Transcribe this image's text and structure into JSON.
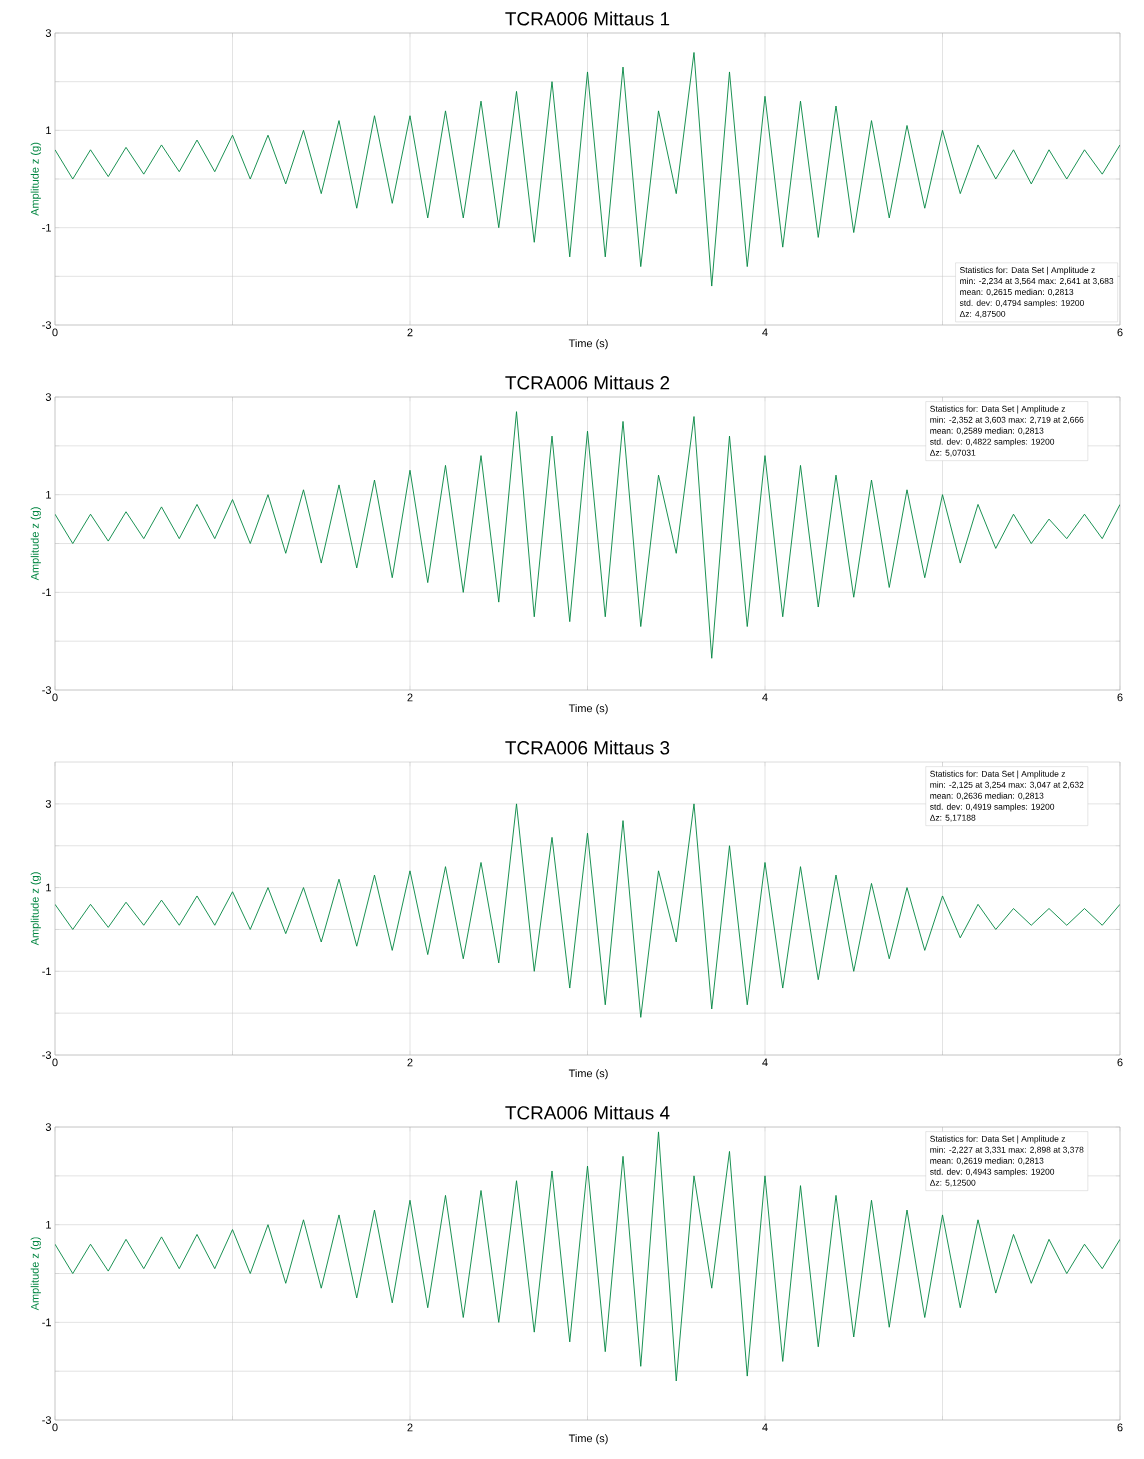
{
  "chart_data": [
    {
      "type": "line",
      "title": "TCRA006 Mittaus 1",
      "xlabel": "Time (s)",
      "ylabel": "Amplitude z (g)",
      "color": "#008540",
      "grid": true,
      "xlim": [
        0,
        6
      ],
      "ylim": [
        -3,
        3
      ],
      "xticks": [
        0,
        {
          "value": 1,
          "label": null
        },
        2,
        {
          "value": 3,
          "label": null
        },
        4,
        {
          "value": 5,
          "label": null
        },
        6
      ],
      "yticks": [
        -3,
        {
          "value": -2,
          "label": null
        },
        -1,
        {
          "value": 0,
          "label": null
        },
        1,
        {
          "value": 2,
          "label": null
        },
        3
      ],
      "annotations": [
        "Statistics for: Data Set | Amplitude z",
        "min: -2,234 at 3,564 max: 2,641 at 3,683",
        "mean: 0,2615 median: 0,2813",
        "std. dev: 0,4794 samples: 19200",
        "Δz: 4,87500"
      ],
      "x": [
        0.0,
        0.1,
        0.2,
        0.3,
        0.4,
        0.5,
        0.6,
        0.7,
        0.8,
        0.9,
        1.0,
        1.1,
        1.2,
        1.3,
        1.4,
        1.5,
        1.6,
        1.7,
        1.8,
        1.9,
        2.0,
        2.1,
        2.2,
        2.3,
        2.4,
        2.5,
        2.6,
        2.7,
        2.8,
        2.9,
        3.0,
        3.1,
        3.2,
        3.3,
        3.4,
        3.5,
        3.6,
        3.7,
        3.8,
        3.9,
        4.0,
        4.1,
        4.2,
        4.3,
        4.4,
        4.5,
        4.6,
        4.7,
        4.8,
        4.9,
        5.0,
        5.1,
        5.2,
        5.3,
        5.4,
        5.5,
        5.6,
        5.7,
        5.8,
        5.9,
        6.0
      ],
      "values": [
        0.6,
        0.0,
        0.6,
        0.05,
        0.65,
        0.1,
        0.7,
        0.15,
        0.8,
        0.15,
        0.9,
        0.0,
        0.9,
        -0.1,
        1.0,
        -0.3,
        1.2,
        -0.6,
        1.3,
        -0.5,
        1.3,
        -0.8,
        1.4,
        -0.8,
        1.6,
        -1.0,
        1.8,
        -1.3,
        2.0,
        -1.6,
        2.2,
        -1.6,
        2.3,
        -1.8,
        1.4,
        -0.3,
        2.6,
        -2.2,
        2.2,
        -1.8,
        1.7,
        -1.4,
        1.6,
        -1.2,
        1.5,
        -1.1,
        1.2,
        -0.8,
        1.1,
        -0.6,
        1.0,
        -0.3,
        0.7,
        0.0,
        0.6,
        -0.1,
        0.6,
        0.0,
        0.6,
        0.1,
        0.7
      ]
    },
    {
      "type": "line",
      "title": "TCRA006 Mittaus 2",
      "xlabel": "Time (s)",
      "ylabel": "Amplitude z (g)",
      "color": "#008540",
      "grid": true,
      "xlim": [
        0,
        6
      ],
      "ylim": [
        -3,
        3
      ],
      "xticks": [
        0,
        {
          "value": 1,
          "label": null
        },
        2,
        {
          "value": 3,
          "label": null
        },
        4,
        {
          "value": 5,
          "label": null
        },
        6
      ],
      "yticks": [
        -3,
        {
          "value": -2,
          "label": null
        },
        -1,
        {
          "value": 0,
          "label": null
        },
        1,
        {
          "value": 2,
          "label": null
        },
        3
      ],
      "annotations": [
        "Statistics for: Data Set | Amplitude z",
        "min: -2,352 at 3,603 max: 2,719 at 2,666",
        "mean: 0,2589 median: 0,2813",
        "std. dev: 0,4822 samples: 19200",
        "Δz: 5,07031"
      ],
      "x": [
        0.0,
        0.1,
        0.2,
        0.3,
        0.4,
        0.5,
        0.6,
        0.7,
        0.8,
        0.9,
        1.0,
        1.1,
        1.2,
        1.3,
        1.4,
        1.5,
        1.6,
        1.7,
        1.8,
        1.9,
        2.0,
        2.1,
        2.2,
        2.3,
        2.4,
        2.5,
        2.6,
        2.7,
        2.8,
        2.9,
        3.0,
        3.1,
        3.2,
        3.3,
        3.4,
        3.5,
        3.6,
        3.7,
        3.8,
        3.9,
        4.0,
        4.1,
        4.2,
        4.3,
        4.4,
        4.5,
        4.6,
        4.7,
        4.8,
        4.9,
        5.0,
        5.1,
        5.2,
        5.3,
        5.4,
        5.5,
        5.6,
        5.7,
        5.8,
        5.9,
        6.0
      ],
      "values": [
        0.6,
        0.0,
        0.6,
        0.05,
        0.65,
        0.1,
        0.75,
        0.1,
        0.8,
        0.1,
        0.9,
        0.0,
        1.0,
        -0.2,
        1.1,
        -0.4,
        1.2,
        -0.5,
        1.3,
        -0.7,
        1.5,
        -0.8,
        1.6,
        -1.0,
        1.8,
        -1.2,
        2.7,
        -1.5,
        2.2,
        -1.6,
        2.3,
        -1.5,
        2.5,
        -1.7,
        1.4,
        -0.2,
        2.6,
        -2.35,
        2.2,
        -1.7,
        1.8,
        -1.5,
        1.6,
        -1.3,
        1.4,
        -1.1,
        1.3,
        -0.9,
        1.1,
        -0.7,
        1.0,
        -0.4,
        0.8,
        -0.1,
        0.6,
        0.0,
        0.5,
        0.1,
        0.6,
        0.1,
        0.8
      ]
    },
    {
      "type": "line",
      "title": "TCRA006 Mittaus 3",
      "xlabel": "Time (s)",
      "ylabel": "Amplitude z (g)",
      "color": "#008540",
      "grid": true,
      "xlim": [
        0,
        6
      ],
      "ylim": [
        -3,
        4
      ],
      "xticks": [
        0,
        {
          "value": 1,
          "label": null
        },
        2,
        {
          "value": 3,
          "label": null
        },
        4,
        {
          "value": 5,
          "label": null
        },
        6
      ],
      "yticks": [
        -3,
        {
          "value": -2,
          "label": null
        },
        -1,
        {
          "value": 0,
          "label": null
        },
        1,
        {
          "value": 2,
          "label": null
        },
        3
      ],
      "annotations": [
        "Statistics for: Data Set | Amplitude z",
        "min: -2,125 at 3,254 max: 3,047 at 2,632",
        "mean: 0,2636 median: 0,2813",
        "std. dev: 0,4919 samples: 19200",
        "Δz: 5,17188"
      ],
      "x": [
        0.0,
        0.1,
        0.2,
        0.3,
        0.4,
        0.5,
        0.6,
        0.7,
        0.8,
        0.9,
        1.0,
        1.1,
        1.2,
        1.3,
        1.4,
        1.5,
        1.6,
        1.7,
        1.8,
        1.9,
        2.0,
        2.1,
        2.2,
        2.3,
        2.4,
        2.5,
        2.6,
        2.7,
        2.8,
        2.9,
        3.0,
        3.1,
        3.2,
        3.3,
        3.4,
        3.5,
        3.6,
        3.7,
        3.8,
        3.9,
        4.0,
        4.1,
        4.2,
        4.3,
        4.4,
        4.5,
        4.6,
        4.7,
        4.8,
        4.9,
        5.0,
        5.1,
        5.2,
        5.3,
        5.4,
        5.5,
        5.6,
        5.7,
        5.8,
        5.9,
        6.0
      ],
      "values": [
        0.6,
        0.0,
        0.6,
        0.05,
        0.65,
        0.1,
        0.7,
        0.1,
        0.8,
        0.1,
        0.9,
        0.0,
        1.0,
        -0.1,
        1.0,
        -0.3,
        1.2,
        -0.4,
        1.3,
        -0.5,
        1.4,
        -0.6,
        1.5,
        -0.7,
        1.6,
        -0.8,
        3.0,
        -1.0,
        2.2,
        -1.4,
        2.3,
        -1.8,
        2.6,
        -2.1,
        1.4,
        -0.3,
        3.0,
        -1.9,
        2.0,
        -1.8,
        1.6,
        -1.4,
        1.5,
        -1.2,
        1.3,
        -1.0,
        1.1,
        -0.7,
        1.0,
        -0.5,
        0.8,
        -0.2,
        0.6,
        0.0,
        0.5,
        0.1,
        0.5,
        0.1,
        0.5,
        0.1,
        0.6
      ]
    },
    {
      "type": "line",
      "title": "TCRA006 Mittaus 4",
      "xlabel": "Time (s)",
      "ylabel": "Amplitude z (g)",
      "color": "#008540",
      "grid": true,
      "xlim": [
        0,
        6
      ],
      "ylim": [
        -3,
        3
      ],
      "xticks": [
        0,
        {
          "value": 1,
          "label": null
        },
        2,
        {
          "value": 3,
          "label": null
        },
        4,
        {
          "value": 5,
          "label": null
        },
        6
      ],
      "yticks": [
        -3,
        {
          "value": -2,
          "label": null
        },
        -1,
        {
          "value": 0,
          "label": null
        },
        1,
        {
          "value": 2,
          "label": null
        },
        3
      ],
      "annotations": [
        "Statistics for: Data Set | Amplitude z",
        "min: -2,227 at 3,331 max: 2,898 at 3,378",
        "mean: 0,2619 median: 0,2813",
        "std. dev: 0,4943 samples: 19200",
        "Δz: 5,12500"
      ],
      "x": [
        0.0,
        0.1,
        0.2,
        0.3,
        0.4,
        0.5,
        0.6,
        0.7,
        0.8,
        0.9,
        1.0,
        1.1,
        1.2,
        1.3,
        1.4,
        1.5,
        1.6,
        1.7,
        1.8,
        1.9,
        2.0,
        2.1,
        2.2,
        2.3,
        2.4,
        2.5,
        2.6,
        2.7,
        2.8,
        2.9,
        3.0,
        3.1,
        3.2,
        3.3,
        3.4,
        3.5,
        3.6,
        3.7,
        3.8,
        3.9,
        4.0,
        4.1,
        4.2,
        4.3,
        4.4,
        4.5,
        4.6,
        4.7,
        4.8,
        4.9,
        5.0,
        5.1,
        5.2,
        5.3,
        5.4,
        5.5,
        5.6,
        5.7,
        5.8,
        5.9,
        6.0
      ],
      "values": [
        0.6,
        0.0,
        0.6,
        0.05,
        0.7,
        0.1,
        0.75,
        0.1,
        0.8,
        0.1,
        0.9,
        0.0,
        1.0,
        -0.2,
        1.1,
        -0.3,
        1.2,
        -0.5,
        1.3,
        -0.6,
        1.5,
        -0.7,
        1.6,
        -0.9,
        1.7,
        -1.0,
        1.9,
        -1.2,
        2.1,
        -1.4,
        2.2,
        -1.6,
        2.4,
        -1.9,
        2.9,
        -2.2,
        2.0,
        -0.3,
        2.5,
        -2.1,
        2.0,
        -1.8,
        1.8,
        -1.5,
        1.6,
        -1.3,
        1.5,
        -1.1,
        1.3,
        -0.9,
        1.2,
        -0.7,
        1.1,
        -0.4,
        0.8,
        -0.2,
        0.7,
        0.0,
        0.6,
        0.1,
        0.7
      ]
    }
  ]
}
